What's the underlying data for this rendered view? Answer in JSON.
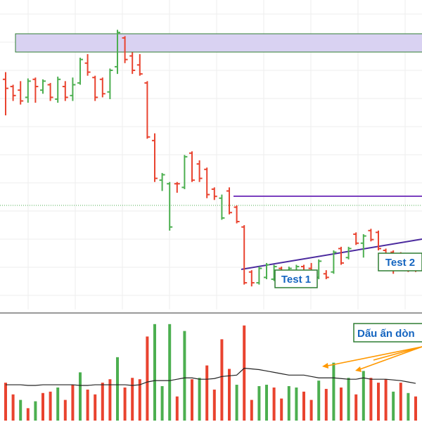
{
  "colors": {
    "up": "#4caf50",
    "down": "#e9432f",
    "zone_fill": "#d9d2f2",
    "zone_stroke": "#2e7d32",
    "resistance": "#7b3fbf",
    "trendline": "#4b2a9e",
    "label_text": "#1565c0",
    "label_border": "#2e7d32",
    "arrow": "#ff9800",
    "volume_ma": "#222222",
    "grid": "#eeeeee",
    "hline": "#4caf50"
  },
  "annotations": {
    "test1": "Test 1",
    "test2": "Test 2",
    "volume_note": "Dấu ấn dòn"
  },
  "chart_data": [
    {
      "type": "ohlc",
      "price_range": [
        0,
        1000
      ],
      "bars": [
        {
          "i": 0,
          "o": 900,
          "h": 940,
          "l": 700,
          "c": 850,
          "dir": "down"
        },
        {
          "i": 1,
          "o": 860,
          "h": 870,
          "l": 780,
          "c": 810,
          "dir": "down"
        },
        {
          "i": 2,
          "o": 840,
          "h": 890,
          "l": 760,
          "c": 780,
          "dir": "down"
        },
        {
          "i": 3,
          "o": 800,
          "h": 905,
          "l": 770,
          "c": 890,
          "dir": "up"
        },
        {
          "i": 4,
          "o": 900,
          "h": 910,
          "l": 770,
          "c": 860,
          "dir": "down"
        },
        {
          "i": 5,
          "o": 840,
          "h": 900,
          "l": 820,
          "c": 890,
          "dir": "up"
        },
        {
          "i": 6,
          "o": 870,
          "h": 880,
          "l": 780,
          "c": 800,
          "dir": "down"
        },
        {
          "i": 7,
          "o": 790,
          "h": 915,
          "l": 770,
          "c": 900,
          "dir": "up"
        },
        {
          "i": 8,
          "o": 860,
          "h": 890,
          "l": 780,
          "c": 800,
          "dir": "down"
        },
        {
          "i": 9,
          "o": 810,
          "h": 910,
          "l": 780,
          "c": 870,
          "dir": "up"
        },
        {
          "i": 10,
          "o": 880,
          "h": 1020,
          "l": 870,
          "c": 1010,
          "dir": "up"
        },
        {
          "i": 11,
          "o": 990,
          "h": 1040,
          "l": 920,
          "c": 940,
          "dir": "down"
        },
        {
          "i": 12,
          "o": 910,
          "h": 920,
          "l": 780,
          "c": 800,
          "dir": "down"
        },
        {
          "i": 13,
          "o": 900,
          "h": 910,
          "l": 800,
          "c": 820,
          "dir": "down"
        },
        {
          "i": 14,
          "o": 830,
          "h": 960,
          "l": 790,
          "c": 950,
          "dir": "up"
        },
        {
          "i": 15,
          "o": 970,
          "h": 1175,
          "l": 930,
          "c": 1160,
          "dir": "up"
        },
        {
          "i": 16,
          "o": 1130,
          "h": 1140,
          "l": 990,
          "c": 1010,
          "dir": "down"
        },
        {
          "i": 17,
          "o": 1030,
          "h": 1050,
          "l": 930,
          "c": 950,
          "dir": "down"
        },
        {
          "i": 18,
          "o": 980,
          "h": 1040,
          "l": 920,
          "c": 930,
          "dir": "down"
        },
        {
          "i": 19,
          "o": 880,
          "h": 890,
          "l": 570,
          "c": 580,
          "dir": "down"
        },
        {
          "i": 20,
          "o": 560,
          "h": 600,
          "l": 330,
          "c": 350,
          "dir": "down"
        },
        {
          "i": 21,
          "o": 340,
          "h": 380,
          "l": 280,
          "c": 370,
          "dir": "up"
        },
        {
          "i": 22,
          "o": 320,
          "h": 330,
          "l": 60,
          "c": 80,
          "dir": "up"
        },
        {
          "i": 23,
          "o": 320,
          "h": 330,
          "l": 270,
          "c": 320,
          "dir": "down"
        },
        {
          "i": 24,
          "o": 300,
          "h": 480,
          "l": 290,
          "c": 470,
          "dir": "up"
        },
        {
          "i": 25,
          "o": 490,
          "h": 500,
          "l": 330,
          "c": 340,
          "dir": "down"
        },
        {
          "i": 26,
          "o": 430,
          "h": 450,
          "l": 330,
          "c": 350,
          "dir": "down"
        },
        {
          "i": 27,
          "o": 400,
          "h": 410,
          "l": 240,
          "c": 260,
          "dir": "down"
        },
        {
          "i": 28,
          "o": 290,
          "h": 300,
          "l": 230,
          "c": 250,
          "dir": "down"
        },
        {
          "i": 29,
          "o": 240,
          "h": 260,
          "l": 120,
          "c": 130,
          "dir": "up"
        },
        {
          "i": 30,
          "o": 280,
          "h": 300,
          "l": 150,
          "c": 160,
          "dir": "down"
        },
        {
          "i": 31,
          "o": 190,
          "h": 200,
          "l": 100,
          "c": 110,
          "dir": "down"
        },
        {
          "i": 32,
          "o": 80,
          "h": 90,
          "l": -240,
          "c": -230,
          "dir": "down"
        },
        {
          "i": 33,
          "o": -170,
          "h": -160,
          "l": -250,
          "c": -230,
          "dir": "down"
        },
        {
          "i": 34,
          "o": -230,
          "h": -140,
          "l": -240,
          "c": -150,
          "dir": "up"
        },
        {
          "i": 35,
          "o": -200,
          "h": -120,
          "l": -210,
          "c": -130,
          "dir": "up"
        },
        {
          "i": 36,
          "o": -210,
          "h": -130,
          "l": -220,
          "c": -140,
          "dir": "up"
        },
        {
          "i": 37,
          "o": -150,
          "h": -140,
          "l": -220,
          "c": -210,
          "dir": "down"
        },
        {
          "i": 38,
          "o": -210,
          "h": -140,
          "l": -220,
          "c": -150,
          "dir": "up"
        },
        {
          "i": 39,
          "o": -200,
          "h": -130,
          "l": -210,
          "c": -140,
          "dir": "up"
        },
        {
          "i": 40,
          "o": -140,
          "h": -130,
          "l": -200,
          "c": -190,
          "dir": "down"
        },
        {
          "i": 41,
          "o": -150,
          "h": -120,
          "l": -190,
          "c": -180,
          "dir": "down"
        },
        {
          "i": 42,
          "o": -200,
          "h": -100,
          "l": -210,
          "c": -110,
          "dir": "up"
        },
        {
          "i": 43,
          "o": -180,
          "h": -160,
          "l": -210,
          "c": -200,
          "dir": "down"
        },
        {
          "i": 44,
          "o": -170,
          "h": -50,
          "l": -180,
          "c": -60,
          "dir": "up"
        },
        {
          "i": 45,
          "o": -40,
          "h": -30,
          "l": -130,
          "c": -120,
          "dir": "down"
        },
        {
          "i": 46,
          "o": -90,
          "h": -30,
          "l": -100,
          "c": -40,
          "dir": "up"
        },
        {
          "i": 47,
          "o": 40,
          "h": 50,
          "l": -20,
          "c": -10,
          "dir": "down"
        },
        {
          "i": 48,
          "o": -10,
          "h": 40,
          "l": -90,
          "c": 30,
          "dir": "up"
        },
        {
          "i": 49,
          "o": 60,
          "h": 70,
          "l": 0,
          "c": 10,
          "dir": "down"
        },
        {
          "i": 50,
          "o": 50,
          "h": 60,
          "l": -50,
          "c": -40,
          "dir": "down"
        },
        {
          "i": 51,
          "o": -50,
          "h": -40,
          "l": -150,
          "c": -140,
          "dir": "down"
        },
        {
          "i": 52,
          "o": -60,
          "h": -50,
          "l": -180,
          "c": -160,
          "dir": "down"
        },
        {
          "i": 53,
          "o": -90,
          "h": -60,
          "l": -160,
          "c": -130,
          "dir": "down"
        },
        {
          "i": 54,
          "o": -90,
          "h": -70,
          "l": -170,
          "c": -150,
          "dir": "down"
        },
        {
          "i": 55,
          "o": -130,
          "h": -100,
          "l": -170,
          "c": -160,
          "dir": "down"
        }
      ]
    },
    {
      "type": "bar",
      "name": "volume",
      "range": [
        0,
        100
      ],
      "bars": [
        {
          "i": 0,
          "v": 55,
          "dir": "down"
        },
        {
          "i": 1,
          "v": 38,
          "dir": "down"
        },
        {
          "i": 2,
          "v": 30,
          "dir": "up"
        },
        {
          "i": 3,
          "v": 18,
          "dir": "down"
        },
        {
          "i": 4,
          "v": 28,
          "dir": "up"
        },
        {
          "i": 5,
          "v": 40,
          "dir": "down"
        },
        {
          "i": 6,
          "v": 42,
          "dir": "down"
        },
        {
          "i": 7,
          "v": 48,
          "dir": "up"
        },
        {
          "i": 8,
          "v": 30,
          "dir": "down"
        },
        {
          "i": 9,
          "v": 52,
          "dir": "down"
        },
        {
          "i": 10,
          "v": 70,
          "dir": "up"
        },
        {
          "i": 11,
          "v": 45,
          "dir": "down"
        },
        {
          "i": 12,
          "v": 38,
          "dir": "down"
        },
        {
          "i": 13,
          "v": 55,
          "dir": "down"
        },
        {
          "i": 14,
          "v": 60,
          "dir": "down"
        },
        {
          "i": 15,
          "v": 92,
          "dir": "up"
        },
        {
          "i": 16,
          "v": 48,
          "dir": "down"
        },
        {
          "i": 17,
          "v": 62,
          "dir": "down"
        },
        {
          "i": 18,
          "v": 60,
          "dir": "down"
        },
        {
          "i": 19,
          "v": 122,
          "dir": "down"
        },
        {
          "i": 20,
          "v": 140,
          "dir": "up"
        },
        {
          "i": 21,
          "v": 50,
          "dir": "up"
        },
        {
          "i": 22,
          "v": 140,
          "dir": "up"
        },
        {
          "i": 23,
          "v": 35,
          "dir": "down"
        },
        {
          "i": 24,
          "v": 130,
          "dir": "up"
        },
        {
          "i": 25,
          "v": 60,
          "dir": "down"
        },
        {
          "i": 26,
          "v": 62,
          "dir": "up"
        },
        {
          "i": 27,
          "v": 80,
          "dir": "down"
        },
        {
          "i": 28,
          "v": 45,
          "dir": "down"
        },
        {
          "i": 29,
          "v": 118,
          "dir": "down"
        },
        {
          "i": 30,
          "v": 75,
          "dir": "down"
        },
        {
          "i": 31,
          "v": 52,
          "dir": "up"
        },
        {
          "i": 32,
          "v": 138,
          "dir": "down"
        },
        {
          "i": 33,
          "v": 30,
          "dir": "down"
        },
        {
          "i": 34,
          "v": 50,
          "dir": "up"
        },
        {
          "i": 35,
          "v": 52,
          "dir": "up"
        },
        {
          "i": 36,
          "v": 48,
          "dir": "down"
        },
        {
          "i": 37,
          "v": 32,
          "dir": "down"
        },
        {
          "i": 38,
          "v": 50,
          "dir": "up"
        },
        {
          "i": 39,
          "v": 48,
          "dir": "up"
        },
        {
          "i": 40,
          "v": 42,
          "dir": "down"
        },
        {
          "i": 41,
          "v": 30,
          "dir": "down"
        },
        {
          "i": 42,
          "v": 58,
          "dir": "up"
        },
        {
          "i": 43,
          "v": 46,
          "dir": "down"
        },
        {
          "i": 44,
          "v": 84,
          "dir": "up"
        },
        {
          "i": 45,
          "v": 48,
          "dir": "down"
        },
        {
          "i": 46,
          "v": 62,
          "dir": "up"
        },
        {
          "i": 47,
          "v": 38,
          "dir": "down"
        },
        {
          "i": 48,
          "v": 72,
          "dir": "up"
        },
        {
          "i": 49,
          "v": 62,
          "dir": "down"
        },
        {
          "i": 50,
          "v": 55,
          "dir": "down"
        },
        {
          "i": 51,
          "v": 60,
          "dir": "down"
        },
        {
          "i": 52,
          "v": 42,
          "dir": "up"
        },
        {
          "i": 53,
          "v": 55,
          "dir": "down"
        },
        {
          "i": 54,
          "v": 40,
          "dir": "up"
        },
        {
          "i": 55,
          "v": 35,
          "dir": "down"
        }
      ],
      "ma": [
        52,
        52,
        52,
        51,
        51,
        52,
        52,
        52,
        52,
        52,
        51,
        51,
        52,
        52,
        52,
        52,
        52,
        51,
        52,
        56,
        58,
        58,
        58,
        60,
        62,
        62,
        60,
        60,
        61,
        64,
        65,
        66,
        76,
        75,
        74,
        72,
        70,
        68,
        66,
        66,
        66,
        64,
        62,
        62,
        62,
        61,
        60,
        60,
        62,
        60,
        60,
        60,
        59,
        58,
        56,
        54
      ]
    }
  ]
}
